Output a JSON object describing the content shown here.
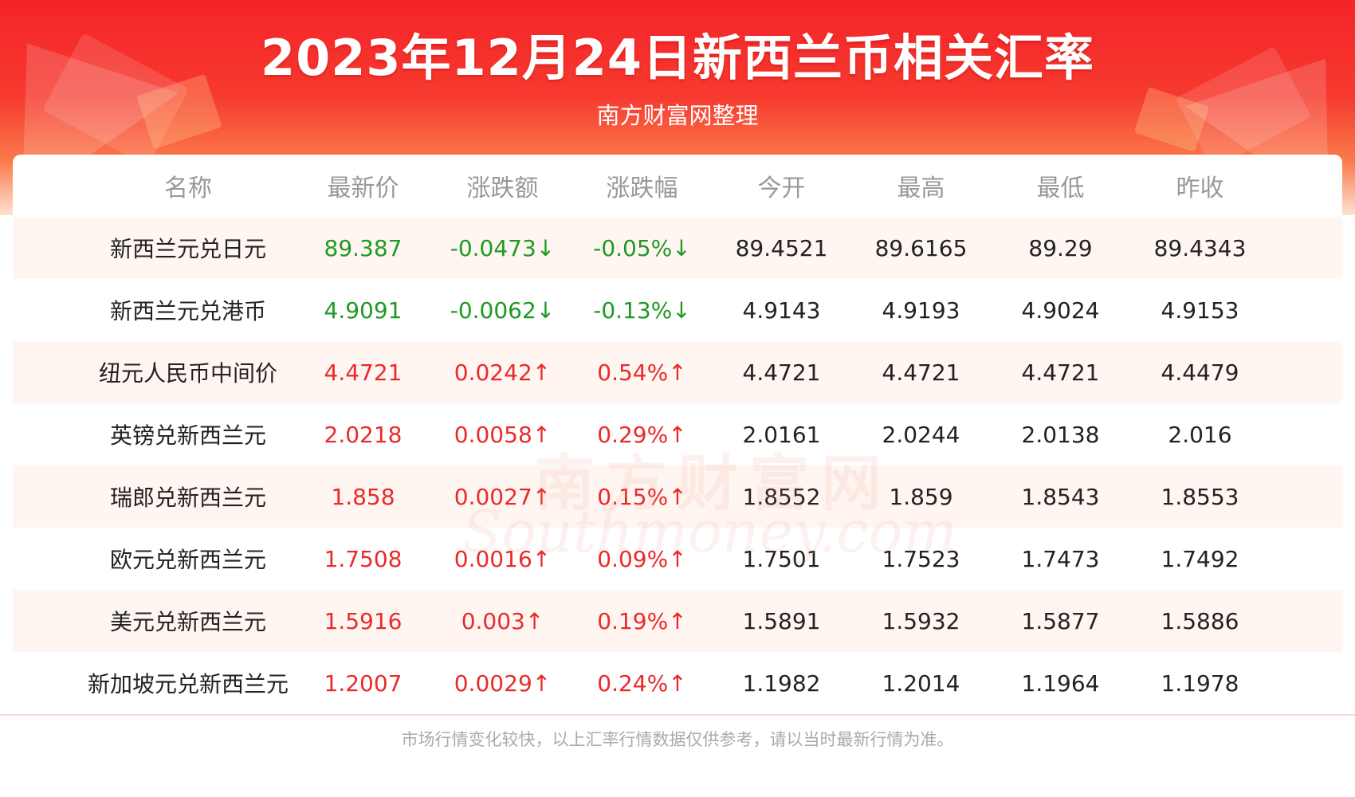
{
  "header": {
    "title": "2023年12月24日新西兰币相关汇率",
    "subtitle": "南方财富网整理"
  },
  "table": {
    "columns": [
      "名称",
      "最新价",
      "涨跌额",
      "涨跌幅",
      "今开",
      "最高",
      "最低",
      "昨收"
    ],
    "rows": [
      {
        "name": "新西兰元兑日元",
        "latest": "89.387",
        "change": "-0.0473↓",
        "change_pct": "-0.05%↓",
        "open": "89.4521",
        "high": "89.6165",
        "low": "89.29",
        "prev_close": "89.4343",
        "direction": "down"
      },
      {
        "name": "新西兰元兑港币",
        "latest": "4.9091",
        "change": "-0.0062↓",
        "change_pct": "-0.13%↓",
        "open": "4.9143",
        "high": "4.9193",
        "low": "4.9024",
        "prev_close": "4.9153",
        "direction": "down"
      },
      {
        "name": "纽元人民币中间价",
        "latest": "4.4721",
        "change": "0.0242↑",
        "change_pct": "0.54%↑",
        "open": "4.4721",
        "high": "4.4721",
        "low": "4.4721",
        "prev_close": "4.4479",
        "direction": "up"
      },
      {
        "name": "英镑兑新西兰元",
        "latest": "2.0218",
        "change": "0.0058↑",
        "change_pct": "0.29%↑",
        "open": "2.0161",
        "high": "2.0244",
        "low": "2.0138",
        "prev_close": "2.016",
        "direction": "up"
      },
      {
        "name": "瑞郎兑新西兰元",
        "latest": "1.858",
        "change": "0.0027↑",
        "change_pct": "0.15%↑",
        "open": "1.8552",
        "high": "1.859",
        "low": "1.8543",
        "prev_close": "1.8553",
        "direction": "up"
      },
      {
        "name": "欧元兑新西兰元",
        "latest": "1.7508",
        "change": "0.0016↑",
        "change_pct": "0.09%↑",
        "open": "1.7501",
        "high": "1.7523",
        "low": "1.7473",
        "prev_close": "1.7492",
        "direction": "up"
      },
      {
        "name": "美元兑新西兰元",
        "latest": "1.5916",
        "change": "0.003↑",
        "change_pct": "0.19%↑",
        "open": "1.5891",
        "high": "1.5932",
        "low": "1.5877",
        "prev_close": "1.5886",
        "direction": "up"
      },
      {
        "name": "新加坡元兑新西兰元",
        "latest": "1.2007",
        "change": "0.0029↑",
        "change_pct": "0.24%↑",
        "open": "1.1982",
        "high": "1.2014",
        "low": "1.1964",
        "prev_close": "1.1978",
        "direction": "up"
      }
    ]
  },
  "watermark": {
    "cn": "南方财富网",
    "en": "Southmoney.com"
  },
  "footer": {
    "note": "市场行情变化较快，以上汇率行情数据仅供参考，请以当时最新行情为准。"
  },
  "colors": {
    "up": "#ea2a2a",
    "down": "#1e9a23",
    "header_red": "#f5232a"
  }
}
